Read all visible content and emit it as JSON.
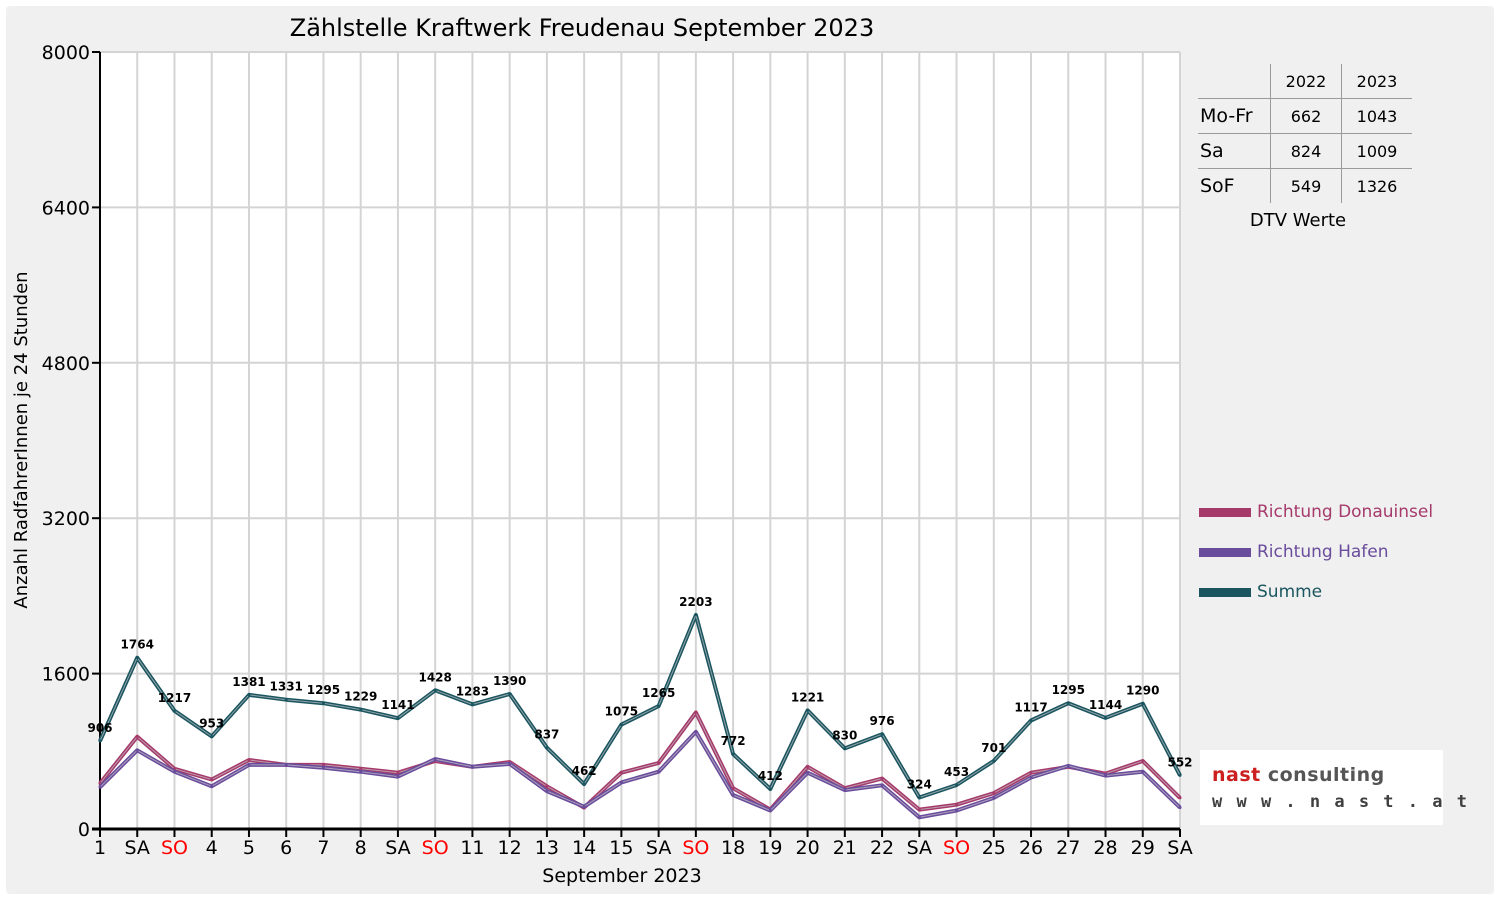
{
  "chart_data": {
    "type": "line",
    "title": "Zählstelle Kraftwerk Freudenau September 2023",
    "xlabel": "September 2023",
    "ylabel": "Anzahl RadfahrerInnen je 24 Stunden",
    "ylim": [
      0,
      8000
    ],
    "yticks": [
      "8000",
      "6400",
      "4800",
      "3200",
      "1600",
      "0"
    ],
    "grid": true,
    "legend_position": "right",
    "categories": [
      "1",
      "SA",
      "SO",
      "4",
      "5",
      "6",
      "7",
      "8",
      "SA",
      "SO",
      "11",
      "12",
      "13",
      "14",
      "15",
      "SA",
      "SO",
      "18",
      "19",
      "20",
      "21",
      "22",
      "SA",
      "SO",
      "25",
      "26",
      "27",
      "28",
      "29",
      "SA"
    ],
    "weekend_colors": {
      "SA": "#000000",
      "SO": "#ff0000"
    },
    "series": [
      {
        "name": "Richtung Donauinsel",
        "color": "#a53a6b",
        "values": [
          470,
          950,
          620,
          510,
          710,
          660,
          660,
          620,
          580,
          700,
          640,
          690,
          440,
          220,
          580,
          680,
          1200,
          420,
          200,
          640,
          420,
          520,
          200,
          250,
          370,
          580,
          640,
          570,
          700,
          320
        ]
      },
      {
        "name": "Richtung Hafen",
        "color": "#6a4c9c",
        "values": [
          430,
          810,
          590,
          440,
          660,
          660,
          630,
          590,
          540,
          720,
          640,
          670,
          390,
          230,
          480,
          590,
          1000,
          350,
          190,
          580,
          400,
          450,
          120,
          190,
          320,
          530,
          650,
          550,
          590,
          220
        ]
      },
      {
        "name": "Summe",
        "color": "#1a5560",
        "values": [
          906,
          1764,
          1217,
          953,
          1381,
          1331,
          1295,
          1229,
          1141,
          1428,
          1283,
          1390,
          837,
          462,
          1075,
          1265,
          2203,
          772,
          412,
          1221,
          830,
          976,
          324,
          453,
          701,
          1117,
          1295,
          1144,
          1290,
          552
        ]
      }
    ]
  },
  "dtv_table": {
    "caption": "DTV Werte",
    "headers": [
      "",
      "2022",
      "2023"
    ],
    "rows": [
      {
        "label": "Mo-Fr",
        "v2022": "662",
        "v2023": "1043"
      },
      {
        "label": "Sa",
        "v2022": "824",
        "v2023": "1009"
      },
      {
        "label": "SoF",
        "v2022": "549",
        "v2023": "1326"
      }
    ]
  },
  "logo": {
    "name_part1": "nast",
    "name_part2": " consulting",
    "url": "www.nast.at",
    "color_part1": "#cc1f1f",
    "color_part2": "#555555"
  }
}
